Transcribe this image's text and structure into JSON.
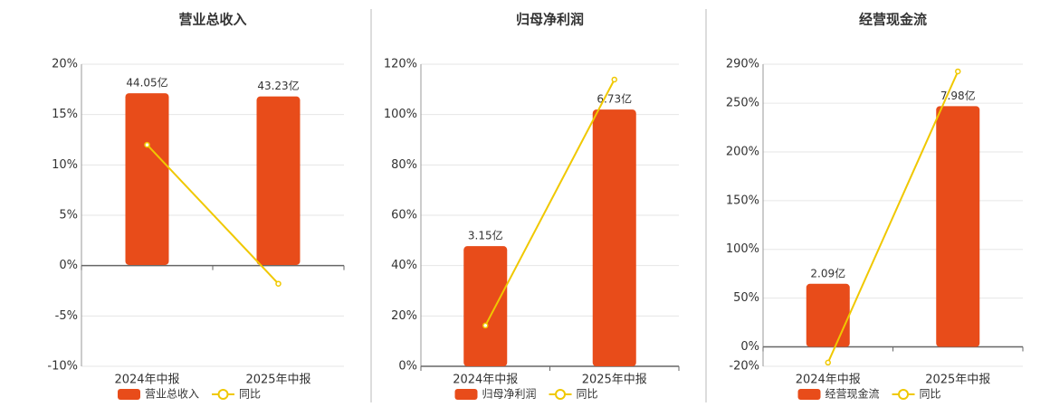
{
  "chart_data": [
    {
      "type": "bar",
      "title": "营业总收入",
      "categories": [
        "2024年中报",
        "2025年中报"
      ],
      "series": [
        {
          "name": "营业总收入",
          "color": "#e84c1a",
          "values": [
            44.05,
            43.23
          ],
          "value_labels": [
            "44.05亿",
            "43.23亿"
          ],
          "axis": "y2"
        },
        {
          "name": "同比",
          "color": "#f0c800",
          "values": [
            12,
            -1.8
          ]
        }
      ],
      "ylim": [
        -10,
        20
      ],
      "yticks": [
        {
          "value": -10,
          "label": "-10%"
        },
        {
          "value": -5,
          "label": "-5%"
        },
        {
          "value": 0,
          "label": "0%"
        },
        {
          "value": 5,
          "label": "5%"
        },
        {
          "value": 10,
          "label": "10%"
        },
        {
          "value": 15,
          "label": "15%"
        },
        {
          "value": 20,
          "label": "20%"
        }
      ],
      "y2lim": [
        -26,
        51.5
      ],
      "grid": true
    },
    {
      "type": "bar",
      "title": "归母净利润",
      "categories": [
        "2024年中报",
        "2025年中报"
      ],
      "series": [
        {
          "name": "归母净利润",
          "color": "#e84c1a",
          "values": [
            3.15,
            6.73
          ],
          "value_labels": [
            "3.15亿",
            "6.73亿"
          ],
          "axis": "y2"
        },
        {
          "name": "同比",
          "color": "#f0c800",
          "values": [
            16.2,
            113.9
          ]
        }
      ],
      "ylim": [
        0,
        120
      ],
      "yticks": [
        {
          "value": 0,
          "label": "0%"
        },
        {
          "value": 20,
          "label": "20%"
        },
        {
          "value": 40,
          "label": "40%"
        },
        {
          "value": 60,
          "label": "60%"
        },
        {
          "value": 80,
          "label": "80%"
        },
        {
          "value": 100,
          "label": "100%"
        },
        {
          "value": 120,
          "label": "120%"
        }
      ],
      "y2lim": [
        0,
        7.92
      ],
      "grid": true
    },
    {
      "type": "bar",
      "title": "经营现金流",
      "categories": [
        "2024年中报",
        "2025年中报"
      ],
      "series": [
        {
          "name": "经营现金流",
          "color": "#e84c1a",
          "values": [
            2.09,
            7.98
          ],
          "value_labels": [
            "2.09亿",
            "7.98亿"
          ],
          "axis": "y2"
        },
        {
          "name": "同比",
          "color": "#f0c800",
          "values": [
            -16.2,
            282.6
          ]
        }
      ],
      "ylim": [
        -20,
        290
      ],
      "yticks": [
        {
          "value": -20,
          "label": "-20%"
        },
        {
          "value": 0,
          "label": "0%"
        },
        {
          "value": 50,
          "label": "50%"
        },
        {
          "value": 100,
          "label": "100%"
        },
        {
          "value": 150,
          "label": "150%"
        },
        {
          "value": 200,
          "label": "200%"
        },
        {
          "value": 250,
          "label": "250%"
        },
        {
          "value": 290,
          "label": "290%"
        }
      ],
      "y2lim": [
        -0.645,
        9.37
      ],
      "grid": true
    }
  ]
}
